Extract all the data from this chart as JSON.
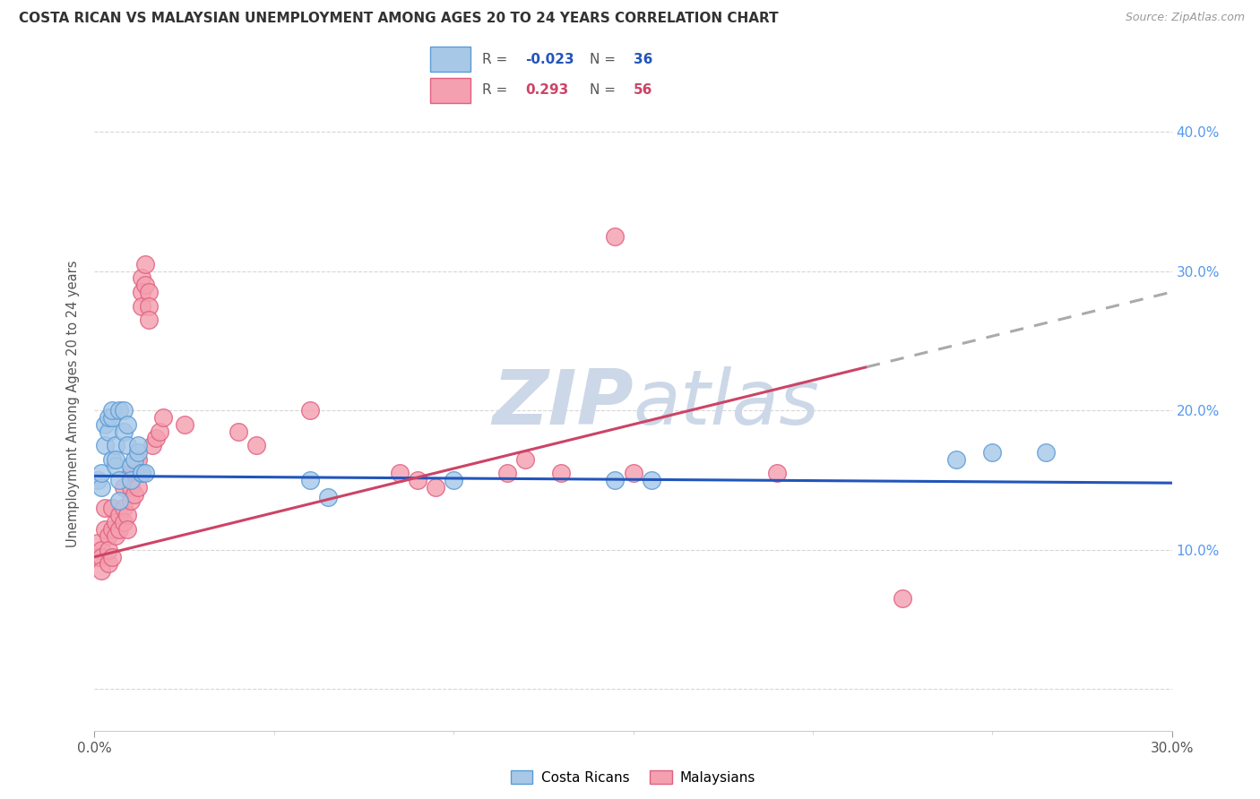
{
  "title": "COSTA RICAN VS MALAYSIAN UNEMPLOYMENT AMONG AGES 20 TO 24 YEARS CORRELATION CHART",
  "source": "Source: ZipAtlas.com",
  "ylabel": "Unemployment Among Ages 20 to 24 years",
  "xlim": [
    0.0,
    0.3
  ],
  "ylim": [
    -0.03,
    0.44
  ],
  "ytick_vals": [
    0.0,
    0.1,
    0.2,
    0.3,
    0.4
  ],
  "ytick_labels": [
    "",
    "10.0%",
    "20.0%",
    "30.0%",
    "40.0%"
  ],
  "xtick_vals": [
    0.0,
    0.3
  ],
  "xtick_labels": [
    "0.0%",
    "30.0%"
  ],
  "costa_rica_color": "#a8c8e8",
  "malaysia_color": "#f4a0b0",
  "costa_rica_edge": "#5b9bd5",
  "malaysia_edge": "#e06080",
  "trend_cr_color": "#2255bb",
  "trend_my_solid_color": "#cc4466",
  "trend_my_dash_color": "#aaaaaa",
  "watermark_color": "#ccd8e8",
  "R_cr": -0.023,
  "N_cr": 36,
  "R_my": 0.293,
  "N_my": 56,
  "cr_trend_x0": 0.0,
  "cr_trend_y0": 0.153,
  "cr_trend_x1": 0.3,
  "cr_trend_y1": 0.148,
  "my_trend_x0": 0.0,
  "my_trend_y0": 0.095,
  "my_trend_x1": 0.3,
  "my_trend_y1": 0.285,
  "my_trend_dash_start": 0.215,
  "costa_rica_x": [
    0.001,
    0.002,
    0.002,
    0.003,
    0.003,
    0.004,
    0.004,
    0.005,
    0.005,
    0.005,
    0.006,
    0.006,
    0.006,
    0.007,
    0.007,
    0.007,
    0.008,
    0.008,
    0.009,
    0.009,
    0.01,
    0.01,
    0.011,
    0.012,
    0.012,
    0.013,
    0.013,
    0.014,
    0.06,
    0.065,
    0.1,
    0.145,
    0.155,
    0.24,
    0.25,
    0.265
  ],
  "costa_rica_y": [
    0.15,
    0.145,
    0.155,
    0.19,
    0.175,
    0.185,
    0.195,
    0.195,
    0.2,
    0.165,
    0.16,
    0.175,
    0.165,
    0.15,
    0.135,
    0.2,
    0.2,
    0.185,
    0.19,
    0.175,
    0.16,
    0.15,
    0.165,
    0.17,
    0.175,
    0.155,
    0.155,
    0.155,
    0.15,
    0.138,
    0.15,
    0.15,
    0.15,
    0.165,
    0.17,
    0.17
  ],
  "malaysia_x": [
    0.001,
    0.001,
    0.002,
    0.002,
    0.002,
    0.003,
    0.003,
    0.004,
    0.004,
    0.004,
    0.005,
    0.005,
    0.005,
    0.006,
    0.006,
    0.007,
    0.007,
    0.008,
    0.008,
    0.008,
    0.009,
    0.009,
    0.01,
    0.01,
    0.01,
    0.011,
    0.011,
    0.012,
    0.012,
    0.012,
    0.013,
    0.013,
    0.013,
    0.014,
    0.014,
    0.015,
    0.015,
    0.015,
    0.016,
    0.017,
    0.018,
    0.019,
    0.025,
    0.04,
    0.045,
    0.06,
    0.085,
    0.09,
    0.095,
    0.115,
    0.12,
    0.13,
    0.145,
    0.15,
    0.19,
    0.225
  ],
  "malaysia_y": [
    0.105,
    0.095,
    0.1,
    0.095,
    0.085,
    0.13,
    0.115,
    0.11,
    0.09,
    0.1,
    0.13,
    0.115,
    0.095,
    0.12,
    0.11,
    0.115,
    0.125,
    0.145,
    0.13,
    0.12,
    0.125,
    0.115,
    0.155,
    0.145,
    0.135,
    0.155,
    0.14,
    0.165,
    0.155,
    0.145,
    0.295,
    0.285,
    0.275,
    0.305,
    0.29,
    0.285,
    0.275,
    0.265,
    0.175,
    0.18,
    0.185,
    0.195,
    0.19,
    0.185,
    0.175,
    0.2,
    0.155,
    0.15,
    0.145,
    0.155,
    0.165,
    0.155,
    0.325,
    0.155,
    0.155,
    0.065
  ]
}
